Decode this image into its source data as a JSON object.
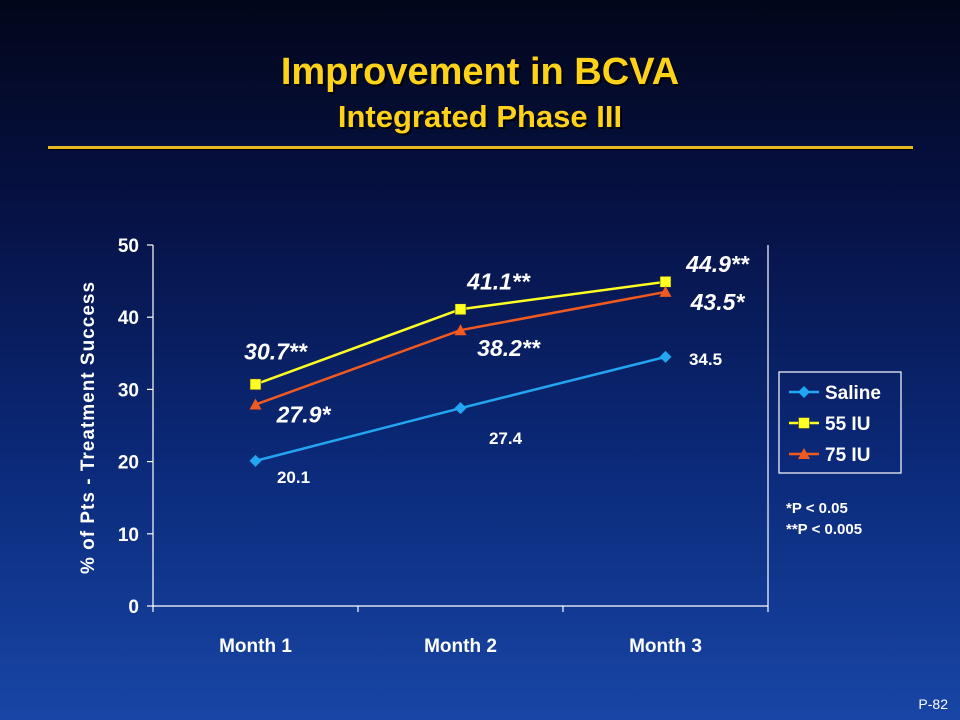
{
  "slide": {
    "title": "Improvement in BCVA",
    "subtitle": "Integrated Phase III",
    "footnotes": [
      "*P < 0.05",
      "**P < 0.005"
    ],
    "page_number": "P-82"
  },
  "colors": {
    "title": "#ffd21a",
    "saline": "#22a6f2",
    "iu55": "#ffff22",
    "iu75": "#f05a1e"
  },
  "chart_data": {
    "type": "line",
    "title": "",
    "xlabel": "",
    "ylabel": "% of Pts - Treatment Success",
    "categories": [
      "Month 1",
      "Month 2",
      "Month 3"
    ],
    "ylim": [
      0,
      50
    ],
    "yticks": [
      0,
      10,
      20,
      30,
      40,
      50
    ],
    "grid": false,
    "legend": "right",
    "series": [
      {
        "name": "Saline",
        "values": [
          20.1,
          27.4,
          34.5
        ],
        "labels": [
          "20.1",
          "27.4",
          "34.5"
        ],
        "marker": "diamond",
        "color": "#22a6f2"
      },
      {
        "name": "55 IU",
        "values": [
          30.7,
          41.1,
          44.9
        ],
        "labels": [
          "30.7**",
          "41.1**",
          "44.9**"
        ],
        "marker": "square",
        "color": "#ffff22"
      },
      {
        "name": "75 IU",
        "values": [
          27.9,
          38.2,
          43.5
        ],
        "labels": [
          "27.9*",
          "38.2**",
          "43.5*"
        ],
        "marker": "triangle",
        "color": "#f05a1e"
      }
    ]
  }
}
